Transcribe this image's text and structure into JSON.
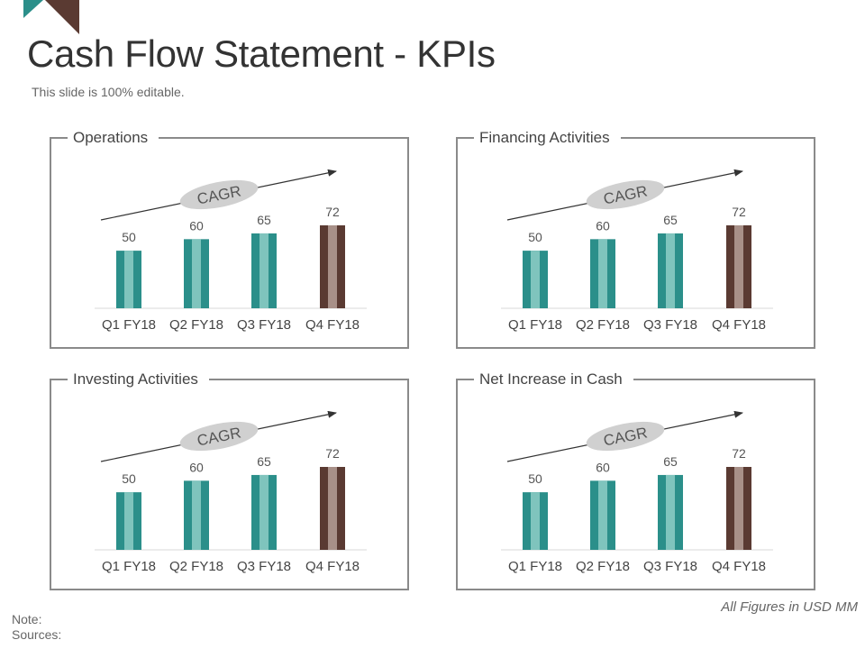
{
  "title": "Cash Flow Statement - KPIs",
  "subtitle": "This slide is 100% editable.",
  "footer_note": "All Figures in USD MM",
  "note_label": "Note:",
  "sources_label": "Sources:",
  "colors": {
    "teal": "#2b8f8a",
    "teal_light": "#7fc4bd",
    "brown": "#5a3a32",
    "brown_light": "#a89088",
    "cagr_badge": "#d0d0d0",
    "panel_border": "#8a8a8a"
  },
  "chart_data": [
    {
      "type": "bar",
      "title": "Operations",
      "categories": [
        "Q1 FY18",
        "Q2 FY18",
        "Q3 FY18",
        "Q4 FY18"
      ],
      "values": [
        50,
        60,
        65,
        72
      ],
      "highlight_index": 3,
      "annotation": "CAGR",
      "ylim": [
        0,
        90
      ]
    },
    {
      "type": "bar",
      "title": "Financing Activities",
      "categories": [
        "Q1 FY18",
        "Q2 FY18",
        "Q3 FY18",
        "Q4 FY18"
      ],
      "values": [
        50,
        60,
        65,
        72
      ],
      "highlight_index": 3,
      "annotation": "CAGR",
      "ylim": [
        0,
        90
      ]
    },
    {
      "type": "bar",
      "title": "Investing Activities",
      "categories": [
        "Q1 FY18",
        "Q2 FY18",
        "Q3 FY18",
        "Q4 FY18"
      ],
      "values": [
        50,
        60,
        65,
        72
      ],
      "highlight_index": 3,
      "annotation": "CAGR",
      "ylim": [
        0,
        90
      ]
    },
    {
      "type": "bar",
      "title": "Net Increase in Cash",
      "categories": [
        "Q1 FY18",
        "Q2 FY18",
        "Q3 FY18",
        "Q4 FY18"
      ],
      "values": [
        50,
        60,
        65,
        72
      ],
      "highlight_index": 3,
      "annotation": "CAGR",
      "ylim": [
        0,
        90
      ]
    }
  ]
}
